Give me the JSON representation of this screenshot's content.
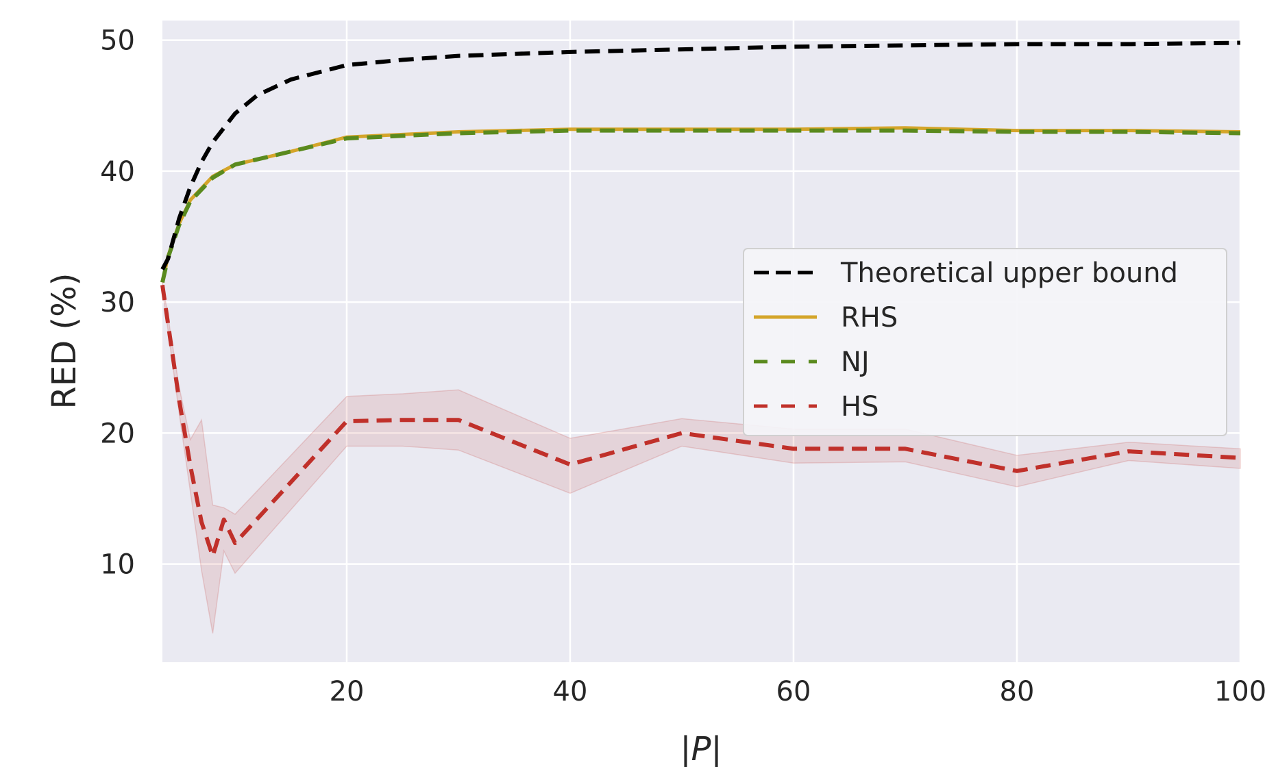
{
  "chart_data": {
    "type": "line",
    "title": "",
    "xlabel": "|P|",
    "ylabel": "RED (%)",
    "xlim": [
      3.5,
      100
    ],
    "ylim": [
      2.5,
      51.5
    ],
    "xticks": [
      20,
      40,
      60,
      80,
      100
    ],
    "yticks": [
      10,
      20,
      30,
      40,
      50
    ],
    "grid": true,
    "legend_position": "center-right",
    "series": [
      {
        "name": "Theoretical upper bound",
        "style": "dashed",
        "color": "#000000",
        "x": [
          3.5,
          4,
          5,
          6,
          7,
          8,
          10,
          12,
          15,
          20,
          25,
          30,
          40,
          50,
          60,
          70,
          80,
          90,
          100
        ],
        "y": [
          32.5,
          33.3,
          36.4,
          38.8,
          40.7,
          42.2,
          44.4,
          45.8,
          47.0,
          48.1,
          48.5,
          48.8,
          49.1,
          49.3,
          49.5,
          49.6,
          49.7,
          49.7,
          49.8
        ]
      },
      {
        "name": "RHS",
        "style": "solid",
        "color": "#d4a52a",
        "x": [
          3.5,
          4,
          5,
          6,
          8,
          10,
          12,
          15,
          20,
          25,
          30,
          40,
          50,
          60,
          70,
          80,
          90,
          100
        ],
        "y": [
          31.5,
          33.5,
          36.0,
          37.8,
          39.6,
          40.5,
          40.9,
          41.5,
          42.6,
          42.8,
          43.0,
          43.2,
          43.2,
          43.2,
          43.3,
          43.1,
          43.1,
          43.0
        ]
      },
      {
        "name": "NJ",
        "style": "dashed",
        "color": "#5a8a1e",
        "x": [
          3.5,
          4,
          5,
          6,
          8,
          10,
          12,
          15,
          20,
          25,
          30,
          40,
          50,
          60,
          70,
          80,
          90,
          100
        ],
        "y": [
          31.5,
          33.4,
          35.9,
          37.7,
          39.5,
          40.5,
          40.9,
          41.5,
          42.5,
          42.7,
          42.9,
          43.1,
          43.1,
          43.1,
          43.1,
          43.0,
          43.0,
          42.9
        ]
      },
      {
        "name": "HS",
        "style": "dashed",
        "color": "#c0302a",
        "x": [
          3.5,
          5,
          6,
          7,
          8,
          9,
          10,
          20,
          25,
          30,
          40,
          50,
          60,
          70,
          80,
          90,
          100
        ],
        "y": [
          31.3,
          22.5,
          17.5,
          13.2,
          10.6,
          13.4,
          11.6,
          20.9,
          21.0,
          21.0,
          17.6,
          20.0,
          18.8,
          18.8,
          17.1,
          18.6,
          18.1
        ],
        "band_upper": [
          31.6,
          23.5,
          19.5,
          21.0,
          14.5,
          14.3,
          13.8,
          22.8,
          23.0,
          23.3,
          19.6,
          21.1,
          20.3,
          20.3,
          18.3,
          19.3,
          18.8
        ],
        "band_lower": [
          31.0,
          21.5,
          15.5,
          9.5,
          4.7,
          11.0,
          9.3,
          19.0,
          19.0,
          18.7,
          15.4,
          19.0,
          17.7,
          17.8,
          15.9,
          17.9,
          17.3
        ]
      }
    ]
  }
}
